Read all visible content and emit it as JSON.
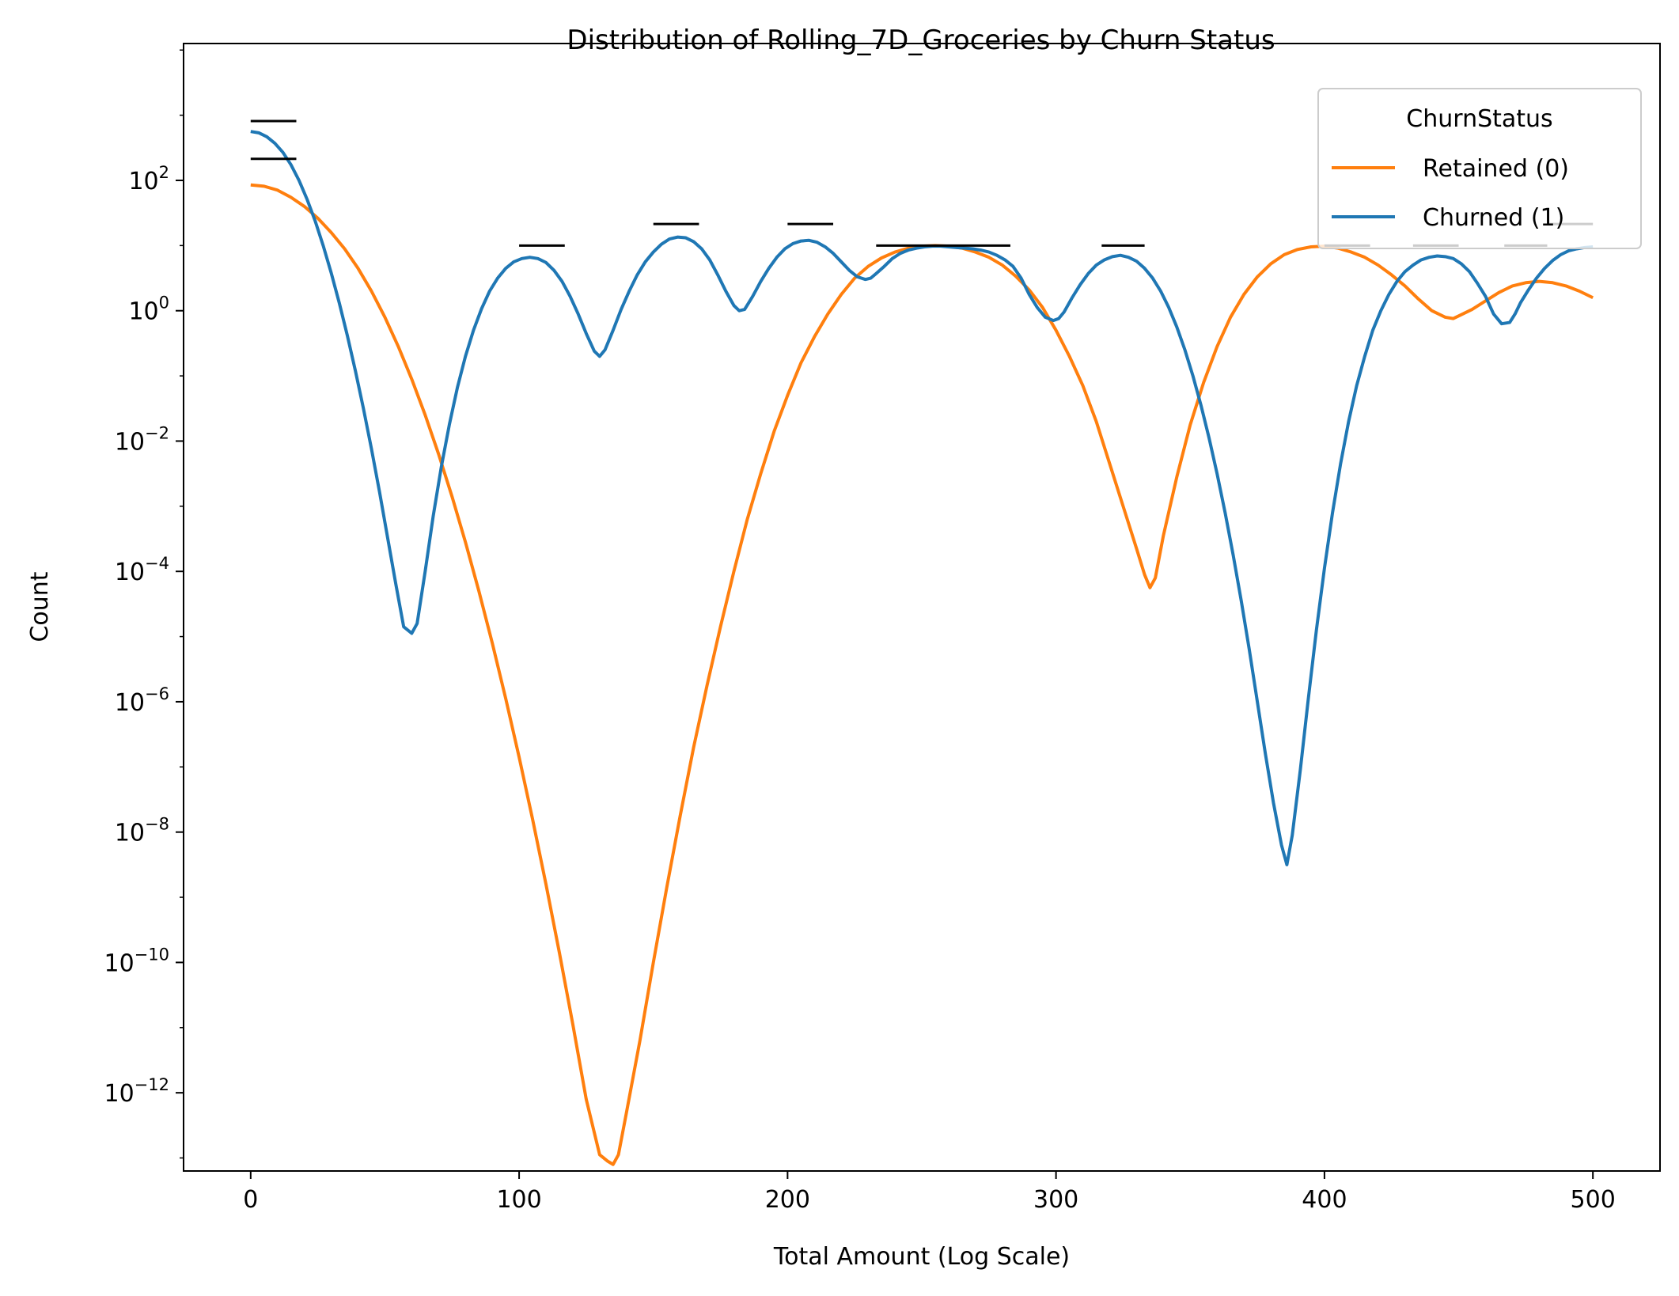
{
  "chart_data": {
    "type": "line",
    "title": "Distribution of Rolling_7D_Groceries by Churn Status",
    "xlabel": "Total Amount (Log Scale)",
    "ylabel": "Count",
    "xlim": [
      -25,
      525
    ],
    "ylim_log10": [
      -13.2,
      4.1
    ],
    "y_scale": "log",
    "x_ticks": [
      {
        "value": 0,
        "label": "0"
      },
      {
        "value": 100,
        "label": "100"
      },
      {
        "value": 200,
        "label": "200"
      },
      {
        "value": 300,
        "label": "300"
      },
      {
        "value": 400,
        "label": "400"
      },
      {
        "value": 500,
        "label": "500"
      }
    ],
    "y_ticks": [
      {
        "exp": 2,
        "base": "10",
        "sup": "2"
      },
      {
        "exp": 0,
        "base": "10",
        "sup": "0"
      },
      {
        "exp": -2,
        "base": "10",
        "sup": "−2"
      },
      {
        "exp": -4,
        "base": "10",
        "sup": "−4"
      },
      {
        "exp": -6,
        "base": "10",
        "sup": "−6"
      },
      {
        "exp": -8,
        "base": "10",
        "sup": "−8"
      },
      {
        "exp": -10,
        "base": "10",
        "sup": "−10"
      },
      {
        "exp": -12,
        "base": "10",
        "sup": "−12"
      }
    ],
    "grid": false,
    "legend": {
      "title": "ChurnStatus",
      "placement": "top-right",
      "entries": [
        {
          "label": "Retained (0)",
          "color": "#ff7f0e"
        },
        {
          "label": "Churned (1)",
          "color": "#1f77b4"
        }
      ]
    },
    "series": [
      {
        "name": "Retained (0)",
        "color": "#ff7f0e",
        "x": [
          0,
          5,
          10,
          15,
          20,
          25,
          30,
          35,
          40,
          45,
          50,
          55,
          60,
          65,
          70,
          75,
          80,
          85,
          90,
          95,
          100,
          105,
          110,
          115,
          120,
          125,
          130,
          133,
          135,
          137,
          140,
          145,
          150,
          155,
          160,
          165,
          170,
          175,
          180,
          185,
          190,
          195,
          200,
          205,
          210,
          215,
          220,
          225,
          230,
          235,
          240,
          245,
          250,
          255,
          260,
          265,
          270,
          275,
          280,
          285,
          290,
          295,
          300,
          305,
          310,
          315,
          320,
          325,
          330,
          333,
          335,
          337,
          340,
          345,
          350,
          355,
          360,
          365,
          370,
          375,
          380,
          385,
          390,
          395,
          400,
          405,
          410,
          415,
          420,
          425,
          430,
          435,
          440,
          445,
          448,
          450,
          455,
          460,
          465,
          470,
          475,
          480,
          485,
          490,
          495,
          500
        ],
        "log10_y": [
          1.93,
          1.91,
          1.85,
          1.74,
          1.6,
          1.42,
          1.2,
          0.95,
          0.65,
          0.3,
          -0.1,
          -0.55,
          -1.05,
          -1.6,
          -2.2,
          -2.85,
          -3.55,
          -4.3,
          -5.1,
          -5.95,
          -6.85,
          -7.8,
          -8.8,
          -9.85,
          -10.95,
          -12.1,
          -12.95,
          -13.05,
          -13.1,
          -12.95,
          -12.3,
          -11.2,
          -10.0,
          -8.85,
          -7.75,
          -6.7,
          -5.75,
          -4.85,
          -4.0,
          -3.2,
          -2.5,
          -1.85,
          -1.3,
          -0.8,
          -0.4,
          -0.05,
          0.25,
          0.5,
          0.68,
          0.81,
          0.9,
          0.96,
          0.99,
          1.0,
          0.99,
          0.96,
          0.9,
          0.82,
          0.7,
          0.53,
          0.32,
          0.05,
          -0.3,
          -0.7,
          -1.15,
          -1.7,
          -2.35,
          -3.0,
          -3.65,
          -4.05,
          -4.25,
          -4.1,
          -3.45,
          -2.55,
          -1.75,
          -1.1,
          -0.55,
          -0.1,
          0.25,
          0.52,
          0.72,
          0.86,
          0.94,
          0.98,
          0.99,
          0.96,
          0.9,
          0.82,
          0.7,
          0.55,
          0.38,
          0.18,
          0.0,
          -0.1,
          -0.12,
          -0.08,
          0.02,
          0.15,
          0.28,
          0.38,
          0.43,
          0.45,
          0.43,
          0.38,
          0.3,
          0.2
        ]
      },
      {
        "name": "Churned (1)",
        "color": "#1f77b4",
        "x": [
          0,
          3,
          6,
          9,
          12,
          15,
          18,
          21,
          24,
          27,
          30,
          33,
          36,
          39,
          42,
          45,
          48,
          51,
          54,
          57,
          60,
          62,
          65,
          68,
          71,
          74,
          77,
          80,
          83,
          86,
          89,
          92,
          95,
          98,
          101,
          104,
          107,
          110,
          113,
          116,
          119,
          122,
          125,
          128,
          130,
          132,
          135,
          138,
          141,
          144,
          147,
          150,
          153,
          156,
          159,
          162,
          165,
          168,
          171,
          174,
          177,
          180,
          182,
          184,
          187,
          190,
          193,
          196,
          199,
          202,
          205,
          208,
          211,
          214,
          217,
          220,
          223,
          226,
          229,
          231,
          233,
          236,
          239,
          242,
          245,
          248,
          251,
          254,
          257,
          260,
          263,
          266,
          269,
          272,
          275,
          278,
          281,
          284,
          287,
          290,
          293,
          296,
          299,
          301,
          303,
          306,
          309,
          312,
          315,
          318,
          321,
          324,
          327,
          330,
          333,
          336,
          339,
          342,
          345,
          348,
          351,
          354,
          357,
          360,
          363,
          366,
          369,
          372,
          375,
          378,
          381,
          384,
          386,
          388,
          391,
          394,
          397,
          400,
          403,
          406,
          409,
          412,
          415,
          418,
          421,
          424,
          427,
          430,
          433,
          436,
          439,
          442,
          445,
          448,
          451,
          454,
          457,
          460,
          463,
          466,
          469,
          471,
          473,
          476,
          479,
          482,
          485,
          488,
          491,
          494,
          497,
          500
        ],
        "log10_y": [
          2.75,
          2.73,
          2.67,
          2.57,
          2.43,
          2.24,
          2.0,
          1.71,
          1.38,
          1.0,
          0.58,
          0.12,
          -0.38,
          -0.92,
          -1.5,
          -2.12,
          -2.78,
          -3.48,
          -4.18,
          -4.85,
          -4.95,
          -4.8,
          -4.0,
          -3.15,
          -2.4,
          -1.75,
          -1.18,
          -0.7,
          -0.3,
          0.03,
          0.3,
          0.5,
          0.65,
          0.75,
          0.8,
          0.82,
          0.8,
          0.74,
          0.62,
          0.45,
          0.22,
          -0.05,
          -0.35,
          -0.62,
          -0.7,
          -0.6,
          -0.3,
          0.02,
          0.3,
          0.55,
          0.75,
          0.9,
          1.02,
          1.1,
          1.13,
          1.12,
          1.06,
          0.95,
          0.78,
          0.55,
          0.3,
          0.08,
          -0.0,
          0.02,
          0.22,
          0.45,
          0.65,
          0.82,
          0.95,
          1.03,
          1.07,
          1.08,
          1.05,
          0.98,
          0.88,
          0.75,
          0.62,
          0.52,
          0.48,
          0.5,
          0.57,
          0.68,
          0.8,
          0.88,
          0.93,
          0.96,
          0.98,
          0.99,
          0.99,
          0.98,
          0.97,
          0.96,
          0.95,
          0.93,
          0.9,
          0.85,
          0.78,
          0.68,
          0.5,
          0.25,
          0.05,
          -0.1,
          -0.15,
          -0.12,
          -0.02,
          0.2,
          0.4,
          0.57,
          0.7,
          0.78,
          0.83,
          0.85,
          0.82,
          0.76,
          0.65,
          0.5,
          0.3,
          0.05,
          -0.25,
          -0.6,
          -1.0,
          -1.45,
          -1.95,
          -2.5,
          -3.1,
          -3.75,
          -4.45,
          -5.2,
          -6.0,
          -6.8,
          -7.55,
          -8.2,
          -8.5,
          -8.05,
          -7.05,
          -5.95,
          -4.9,
          -3.95,
          -3.1,
          -2.35,
          -1.7,
          -1.15,
          -0.7,
          -0.3,
          0.0,
          0.25,
          0.45,
          0.6,
          0.7,
          0.78,
          0.82,
          0.84,
          0.83,
          0.8,
          0.72,
          0.6,
          0.42,
          0.22,
          -0.05,
          -0.2,
          -0.18,
          -0.05,
          0.12,
          0.32,
          0.5,
          0.65,
          0.77,
          0.86,
          0.92,
          0.95,
          0.97,
          0.98
        ]
      }
    ],
    "annotation_segments": [
      {
        "x0": 0,
        "x1": 17,
        "log10_y": 2.91
      },
      {
        "x0": 0,
        "x1": 17,
        "log10_y": 2.33
      },
      {
        "x0": 100,
        "x1": 117,
        "log10_y": 1.0
      },
      {
        "x0": 150,
        "x1": 167,
        "log10_y": 1.33
      },
      {
        "x0": 200,
        "x1": 217,
        "log10_y": 1.33
      },
      {
        "x0": 233,
        "x1": 283,
        "log10_y": 1.0
      },
      {
        "x0": 317,
        "x1": 333,
        "log10_y": 1.0
      },
      {
        "x0": 400,
        "x1": 417,
        "log10_y": 1.0
      },
      {
        "x0": 433,
        "x1": 450,
        "log10_y": 1.0
      },
      {
        "x0": 467,
        "x1": 483,
        "log10_y": 1.0
      },
      {
        "x0": 483,
        "x1": 500,
        "log10_y": 1.33
      }
    ]
  }
}
